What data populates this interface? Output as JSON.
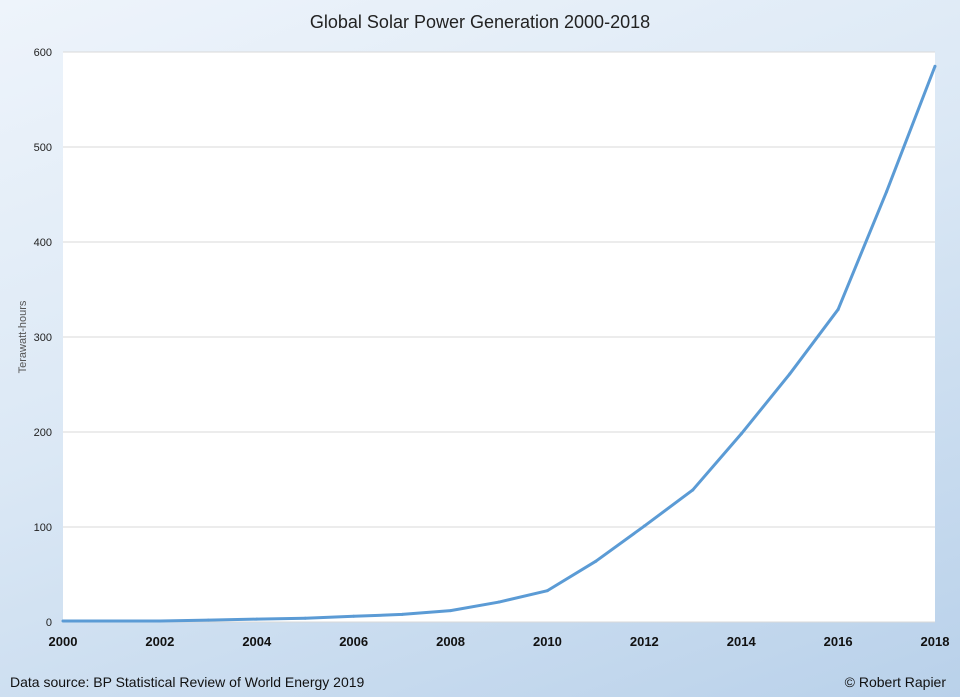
{
  "chart_data": {
    "type": "line",
    "title": "Global Solar Power Generation 2000-2018",
    "xlabel": "",
    "ylabel": "Terawatt-hours",
    "xlim": [
      2000,
      2018
    ],
    "ylim": [
      0,
      600
    ],
    "xticks": [
      "2000",
      "2002",
      "2004",
      "2006",
      "2008",
      "2010",
      "2012",
      "2014",
      "2016",
      "2018"
    ],
    "yticks": [
      "0",
      "100",
      "200",
      "300",
      "400",
      "500",
      "600"
    ],
    "grid": "horizontal",
    "line_color": "#5b9bd5",
    "x": [
      2000,
      2001,
      2002,
      2003,
      2004,
      2005,
      2006,
      2007,
      2008,
      2009,
      2010,
      2011,
      2012,
      2013,
      2014,
      2015,
      2016,
      2017,
      2018
    ],
    "values": [
      1,
      1,
      1,
      2,
      3,
      4,
      6,
      8,
      12,
      21,
      33,
      64,
      101,
      139,
      198,
      261,
      329,
      453,
      585
    ]
  },
  "footer": {
    "source": "Data source: BP Statistical Review of World Energy 2019",
    "credit": "© Robert Rapier"
  }
}
